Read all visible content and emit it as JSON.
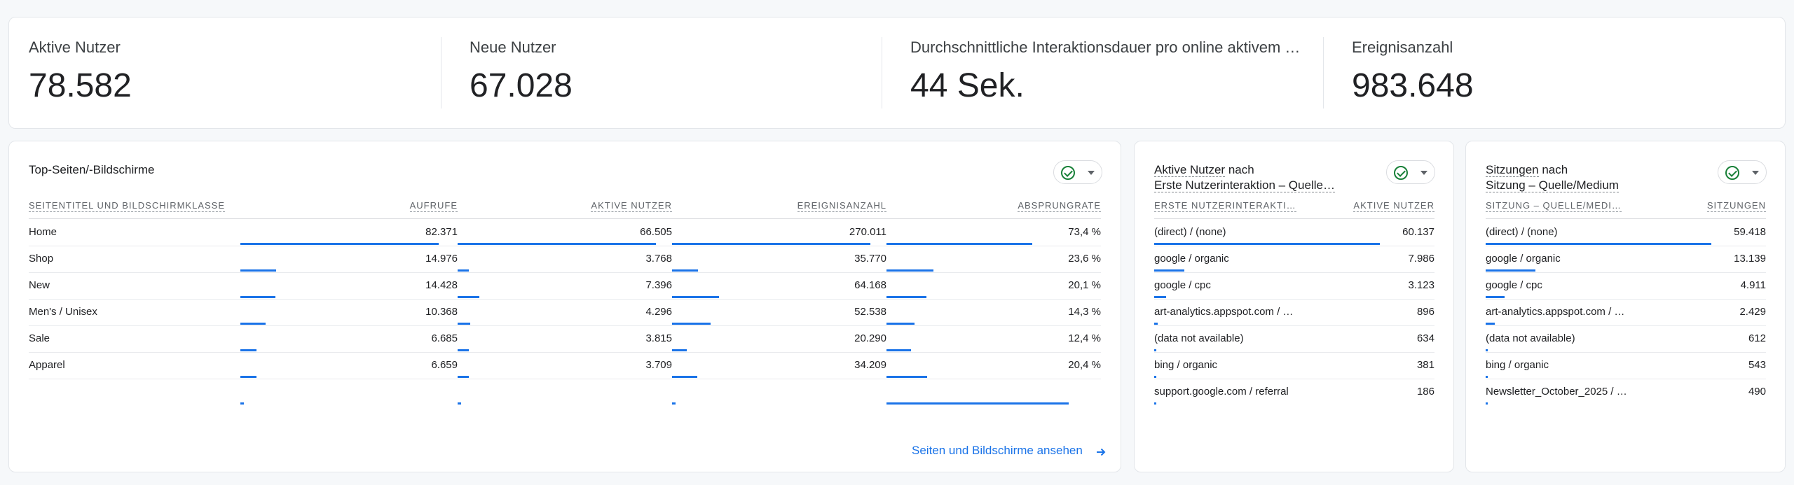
{
  "kpis": [
    {
      "label": "Aktive Nutzer",
      "value": "78.582"
    },
    {
      "label": "Neue Nutzer",
      "value": "67.028"
    },
    {
      "label": "Durchschnittliche Interaktionsdauer pro online aktivem …",
      "value": "44 Sek."
    },
    {
      "label": "Ereignisanzahl",
      "value": "983.648"
    }
  ],
  "pages_card": {
    "title": "Top-Seiten/-Bildschirme",
    "headers": [
      "SEITENTITEL UND BILDSCHIRMKLASSE",
      "AUFRUFE",
      "AKTIVE NUTZER",
      "EREIGNISANZAHL",
      "ABSPRUNGRATE"
    ],
    "rows": [
      {
        "name": "Home",
        "views": "82.371",
        "users": "66.505",
        "events": "270.011",
        "bounce": "73,4 %"
      },
      {
        "name": "Shop",
        "views": "14.976",
        "users": "3.768",
        "events": "35.770",
        "bounce": "23,6 %"
      },
      {
        "name": "New",
        "views": "14.428",
        "users": "7.396",
        "events": "64.168",
        "bounce": "20,1 %"
      },
      {
        "name": "Men's / Unisex",
        "views": "10.368",
        "users": "4.296",
        "events": "52.538",
        "bounce": "14,3 %"
      },
      {
        "name": "Sale",
        "views": "6.685",
        "users": "3.815",
        "events": "20.290",
        "bounce": "12,4 %"
      },
      {
        "name": "Apparel",
        "views": "6.659",
        "users": "3.709",
        "events": "34.209",
        "bounce": "20,4 %"
      }
    ],
    "extra_bounce_fraction": 0.92,
    "link_label": "Seiten und Bildschirme ansehen"
  },
  "users_card": {
    "title_line1": "Aktive Nutzer",
    "title_mid": " nach",
    "title_line2": "Erste Nutzerinteraktion – Quelle…",
    "headers": [
      "ERSTE NUTZERINTERAKTI…",
      "AKTIVE NUTZER"
    ],
    "rows": [
      {
        "name": "(direct) / (none)",
        "value": "60.137"
      },
      {
        "name": "google / organic",
        "value": "7.986"
      },
      {
        "name": "google / cpc",
        "value": "3.123"
      },
      {
        "name": "art-analytics.appspot.com / …",
        "value": "896"
      },
      {
        "name": "(data not available)",
        "value": "634"
      },
      {
        "name": "bing / organic",
        "value": "381"
      },
      {
        "name": "support.google.com / referral",
        "value": "186"
      }
    ]
  },
  "sess_card": {
    "title_line1": "Sitzungen",
    "title_mid": " nach",
    "title_line2": "Sitzung – Quelle/Medium",
    "headers": [
      "SITZUNG – QUELLE/MEDI…",
      "SITZUNGEN"
    ],
    "rows": [
      {
        "name": "(direct) / (none)",
        "value": "59.418"
      },
      {
        "name": "google / organic",
        "value": "13.139"
      },
      {
        "name": "google / cpc",
        "value": "4.911"
      },
      {
        "name": "art-analytics.appspot.com / …",
        "value": "2.429"
      },
      {
        "name": "(data not available)",
        "value": "612"
      },
      {
        "name": "bing / organic",
        "value": "543"
      },
      {
        "name": "Newsletter_October_2025 / …",
        "value": "490"
      }
    ]
  },
  "colors": {
    "bar": "#1a73e8",
    "link": "#1a73e8",
    "check": "#188038"
  }
}
